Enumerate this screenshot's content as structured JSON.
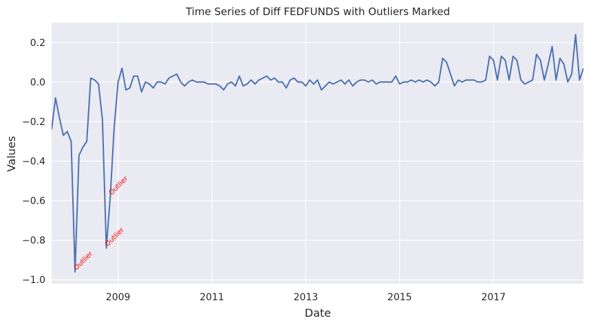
{
  "chart_data": {
    "type": "line",
    "title": "Time Series of Diff FEDFUNDS with Outliers Marked",
    "xlabel": "Date",
    "ylabel": "Values",
    "grid": true,
    "x_range": [
      "2007-08",
      "2018-11"
    ],
    "ylim": [
      -1.02,
      0.3
    ],
    "x_ticks": [
      {
        "label": "2009",
        "value": "2009-01"
      },
      {
        "label": "2011",
        "value": "2011-01"
      },
      {
        "label": "2013",
        "value": "2013-01"
      },
      {
        "label": "2015",
        "value": "2015-01"
      },
      {
        "label": "2017",
        "value": "2017-01"
      }
    ],
    "y_ticks": [
      0.2,
      0.0,
      -0.2,
      -0.4,
      -0.6,
      -0.8,
      -1.0
    ],
    "y_tick_labels": [
      "0.2",
      "0.0",
      "−0.2",
      "−0.4",
      "−0.6",
      "−0.8",
      "−1.0"
    ],
    "series": [
      {
        "color": "#4c72b0",
        "points": [
          [
            "2007-08",
            -0.24
          ],
          [
            "2007-09",
            -0.08
          ],
          [
            "2007-10",
            -0.18
          ],
          [
            "2007-11",
            -0.27
          ],
          [
            "2007-12",
            -0.25
          ],
          [
            "2008-01",
            -0.3
          ],
          [
            "2008-02",
            -0.96
          ],
          [
            "2008-03",
            -0.37
          ],
          [
            "2008-04",
            -0.33
          ],
          [
            "2008-05",
            -0.3
          ],
          [
            "2008-06",
            0.02
          ],
          [
            "2008-07",
            0.01
          ],
          [
            "2008-08",
            -0.01
          ],
          [
            "2008-09",
            -0.19
          ],
          [
            "2008-10",
            -0.84
          ],
          [
            "2008-11",
            -0.58
          ],
          [
            "2008-12",
            -0.23
          ],
          [
            "2009-01",
            0.0
          ],
          [
            "2009-02",
            0.07
          ],
          [
            "2009-03",
            -0.04
          ],
          [
            "2009-04",
            -0.03
          ],
          [
            "2009-05",
            0.03
          ],
          [
            "2009-06",
            0.03
          ],
          [
            "2009-07",
            -0.05
          ],
          [
            "2009-08",
            0.0
          ],
          [
            "2009-09",
            -0.01
          ],
          [
            "2009-10",
            -0.03
          ],
          [
            "2009-11",
            0.0
          ],
          [
            "2009-12",
            0.0
          ],
          [
            "2010-01",
            -0.01
          ],
          [
            "2010-02",
            0.02
          ],
          [
            "2010-03",
            0.03
          ],
          [
            "2010-04",
            0.04
          ],
          [
            "2010-05",
            0.0
          ],
          [
            "2010-06",
            -0.02
          ],
          [
            "2010-07",
            0.0
          ],
          [
            "2010-08",
            0.01
          ],
          [
            "2010-09",
            0.0
          ],
          [
            "2010-10",
            0.0
          ],
          [
            "2010-11",
            0.0
          ],
          [
            "2010-12",
            -0.01
          ],
          [
            "2011-01",
            -0.01
          ],
          [
            "2011-02",
            -0.01
          ],
          [
            "2011-03",
            -0.02
          ],
          [
            "2011-04",
            -0.04
          ],
          [
            "2011-05",
            -0.01
          ],
          [
            "2011-06",
            0.0
          ],
          [
            "2011-07",
            -0.02
          ],
          [
            "2011-08",
            0.03
          ],
          [
            "2011-09",
            -0.02
          ],
          [
            "2011-10",
            -0.01
          ],
          [
            "2011-11",
            0.01
          ],
          [
            "2011-12",
            -0.01
          ],
          [
            "2012-01",
            0.01
          ],
          [
            "2012-02",
            0.02
          ],
          [
            "2012-03",
            0.03
          ],
          [
            "2012-04",
            0.01
          ],
          [
            "2012-05",
            0.02
          ],
          [
            "2012-06",
            0.0
          ],
          [
            "2012-07",
            0.0
          ],
          [
            "2012-08",
            -0.03
          ],
          [
            "2012-09",
            0.01
          ],
          [
            "2012-10",
            0.02
          ],
          [
            "2012-11",
            0.0
          ],
          [
            "2012-12",
            0.0
          ],
          [
            "2013-01",
            -0.02
          ],
          [
            "2013-02",
            0.01
          ],
          [
            "2013-03",
            -0.01
          ],
          [
            "2013-04",
            0.01
          ],
          [
            "2013-05",
            -0.04
          ],
          [
            "2013-06",
            -0.02
          ],
          [
            "2013-07",
            0.0
          ],
          [
            "2013-08",
            -0.01
          ],
          [
            "2013-09",
            0.0
          ],
          [
            "2013-10",
            0.01
          ],
          [
            "2013-11",
            -0.01
          ],
          [
            "2013-12",
            0.01
          ],
          [
            "2014-01",
            -0.02
          ],
          [
            "2014-02",
            0.0
          ],
          [
            "2014-03",
            0.01
          ],
          [
            "2014-04",
            0.01
          ],
          [
            "2014-05",
            0.0
          ],
          [
            "2014-06",
            0.01
          ],
          [
            "2014-07",
            -0.01
          ],
          [
            "2014-08",
            0.0
          ],
          [
            "2014-09",
            0.0
          ],
          [
            "2014-10",
            0.0
          ],
          [
            "2014-11",
            0.0
          ],
          [
            "2014-12",
            0.03
          ],
          [
            "2015-01",
            -0.01
          ],
          [
            "2015-02",
            0.0
          ],
          [
            "2015-03",
            0.0
          ],
          [
            "2015-04",
            0.01
          ],
          [
            "2015-05",
            0.0
          ],
          [
            "2015-06",
            0.01
          ],
          [
            "2015-07",
            0.0
          ],
          [
            "2015-08",
            0.01
          ],
          [
            "2015-09",
            0.0
          ],
          [
            "2015-10",
            -0.02
          ],
          [
            "2015-11",
            0.0
          ],
          [
            "2015-12",
            0.12
          ],
          [
            "2016-01",
            0.1
          ],
          [
            "2016-02",
            0.04
          ],
          [
            "2016-03",
            -0.02
          ],
          [
            "2016-04",
            0.01
          ],
          [
            "2016-05",
            0.0
          ],
          [
            "2016-06",
            0.01
          ],
          [
            "2016-07",
            0.01
          ],
          [
            "2016-08",
            0.01
          ],
          [
            "2016-09",
            0.0
          ],
          [
            "2016-10",
            0.0
          ],
          [
            "2016-11",
            0.01
          ],
          [
            "2016-12",
            0.13
          ],
          [
            "2017-01",
            0.11
          ],
          [
            "2017-02",
            0.01
          ],
          [
            "2017-03",
            0.13
          ],
          [
            "2017-04",
            0.11
          ],
          [
            "2017-05",
            0.01
          ],
          [
            "2017-06",
            0.13
          ],
          [
            "2017-07",
            0.11
          ],
          [
            "2017-08",
            0.01
          ],
          [
            "2017-09",
            -0.01
          ],
          [
            "2017-10",
            0.0
          ],
          [
            "2017-11",
            0.01
          ],
          [
            "2017-12",
            0.14
          ],
          [
            "2018-01",
            0.11
          ],
          [
            "2018-02",
            0.01
          ],
          [
            "2018-03",
            0.09
          ],
          [
            "2018-04",
            0.18
          ],
          [
            "2018-05",
            0.01
          ],
          [
            "2018-06",
            0.12
          ],
          [
            "2018-07",
            0.09
          ],
          [
            "2018-08",
            0.0
          ],
          [
            "2018-09",
            0.04
          ],
          [
            "2018-10",
            0.24
          ],
          [
            "2018-11",
            0.01
          ],
          [
            "2018-12",
            0.07
          ]
        ]
      }
    ],
    "annotations": [
      {
        "text": "Outlier",
        "x": "2008-02",
        "y": -0.96,
        "color": "#ff0000"
      },
      {
        "text": "Outlier",
        "x": "2008-10",
        "y": -0.84,
        "color": "#ff0000"
      },
      {
        "text": "Outlier",
        "x": "2008-11",
        "y": -0.58,
        "color": "#ff0000"
      }
    ]
  }
}
